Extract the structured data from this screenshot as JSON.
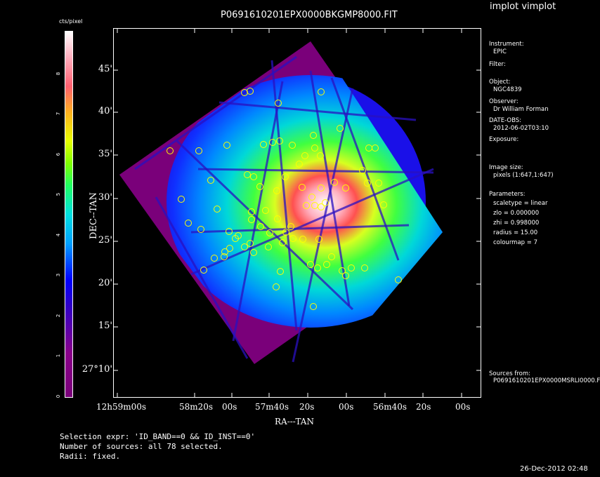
{
  "header": {
    "file_title": "P0691610201EPX0000BKGMP8000.FIT",
    "app_title": "implot vimplot"
  },
  "colorbar": {
    "label": "cts/pixel",
    "ticks": [
      "0",
      "1",
      "2",
      "3",
      "4",
      "5",
      "6",
      "7",
      "8"
    ]
  },
  "info_panel": {
    "instrument_label": "Instrument:",
    "instrument_value": "EPIC",
    "filter_label": "Filter:",
    "object_label": "Object:",
    "object_value": "NGC4839",
    "observer_label": "Observer:",
    "observer_value": "Dr William Forman",
    "date_label": "DATE-OBS:",
    "date_value": "2012-06-02T03:10",
    "exposure_label": "Exposure:",
    "image_size_label": "Image size:",
    "image_size_value": "pixels (1:647,1:647)",
    "parameters_label": "Parameters:",
    "param_scaletype": "scaletype = linear",
    "param_zlo": "zlo = 0.000000",
    "param_zhi": "zhi = 0.998000",
    "param_radius": "radius = 15.00",
    "param_colourmap": "colourmap = 7",
    "sources_label": "Sources from:",
    "sources_value": "P0691610201EPX0000MSRLI0000.F"
  },
  "footer": {
    "selection_expr": "Selection expr: 'ID_BAND==0 && ID_INST==0'",
    "num_sources": "Number of sources: all 78 selected.",
    "radii": "Radii: fixed.",
    "timestamp": "26-Dec-2012 02:48"
  },
  "chart_data": {
    "type": "heatmap",
    "title": "P0691610201EPX0000BKGMP8000.FIT",
    "xlabel": "RA---TAN",
    "ylabel": "DEC--TAN",
    "x_ticks": [
      "12h59m00s",
      "58m20s",
      "00s",
      "57m40s",
      "20s",
      "00s",
      "56m40s",
      "20s",
      "00s"
    ],
    "y_ticks": [
      "45'",
      "40'",
      "35'",
      "30'",
      "25'",
      "20'",
      "15'",
      "27°10'"
    ],
    "colorbar_range": [
      0,
      9
    ],
    "colormap": "rainbow (purple-blue-cyan-green-yellow-red-white)",
    "overlay": {
      "marker": "circle",
      "color": "#ffff00",
      "count": 78,
      "label": "sources"
    },
    "grid": false
  }
}
